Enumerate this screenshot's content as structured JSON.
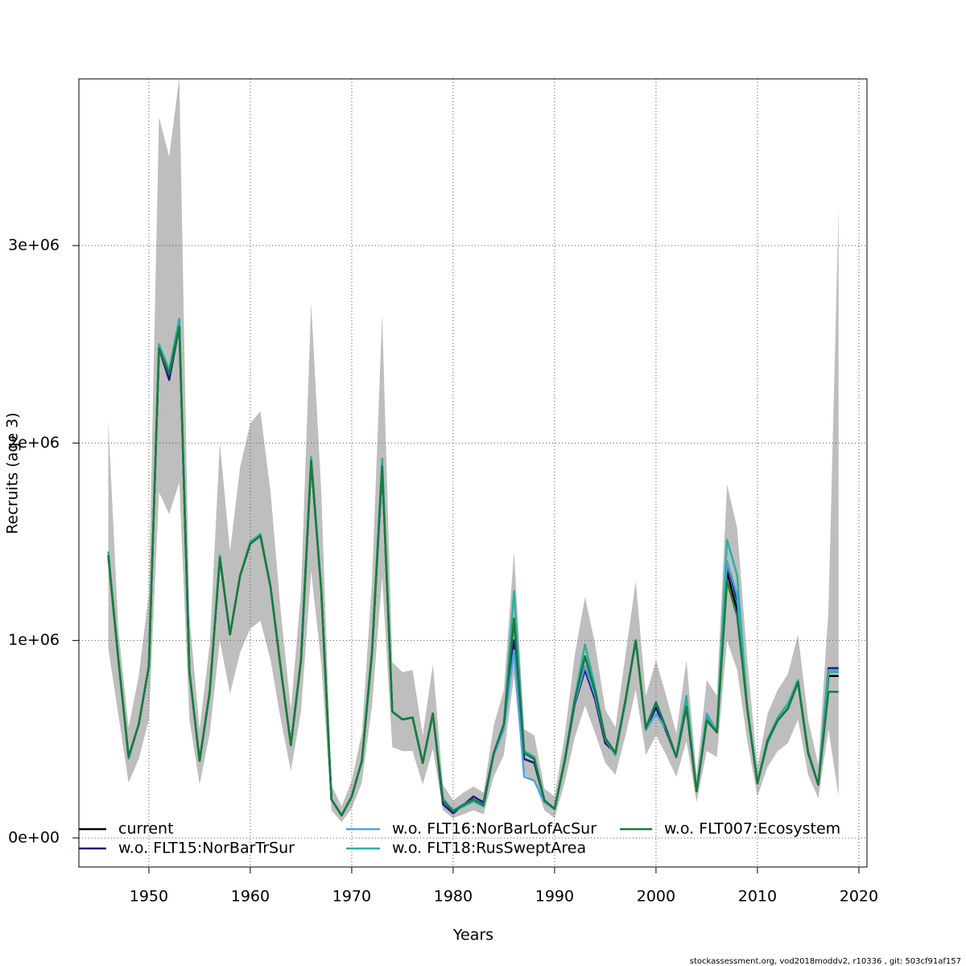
{
  "chart_data": {
    "type": "line",
    "x_label": "Years",
    "y_label": "Recruits (age 3)",
    "footer": "stockassessment.org, vod2018moddv2, r10336 , git: 503cf91af157",
    "x": [
      1946,
      1947,
      1948,
      1949,
      1950,
      1951,
      1952,
      1953,
      1954,
      1955,
      1956,
      1957,
      1958,
      1959,
      1960,
      1961,
      1962,
      1963,
      1964,
      1965,
      1966,
      1967,
      1968,
      1969,
      1970,
      1971,
      1972,
      1973,
      1974,
      1975,
      1976,
      1977,
      1978,
      1979,
      1980,
      1981,
      1982,
      1983,
      1984,
      1985,
      1986,
      1987,
      1988,
      1989,
      1990,
      1991,
      1992,
      1993,
      1994,
      1995,
      1996,
      1997,
      1998,
      1999,
      2000,
      2001,
      2002,
      2003,
      2004,
      2005,
      2006,
      2007,
      2008,
      2009,
      2010,
      2011,
      2012,
      2013,
      2014,
      2015,
      2016,
      2017,
      2018
    ],
    "band": {
      "color": "#bebebe",
      "lower": [
        960000,
        620000,
        280000,
        400000,
        600000,
        1750000,
        1640000,
        1800000,
        600000,
        270000,
        530000,
        1000000,
        730000,
        940000,
        1060000,
        1100000,
        900000,
        600000,
        340000,
        640000,
        1350000,
        880000,
        140000,
        80000,
        150000,
        280000,
        670000,
        1320000,
        460000,
        440000,
        440000,
        270000,
        450000,
        140000,
        100000,
        120000,
        140000,
        120000,
        310000,
        420000,
        820000,
        320000,
        290000,
        140000,
        100000,
        280000,
        510000,
        670000,
        530000,
        380000,
        320000,
        520000,
        750000,
        420000,
        520000,
        420000,
        310000,
        490000,
        180000,
        440000,
        410000,
        1000000,
        850000,
        490000,
        210000,
        360000,
        440000,
        480000,
        600000,
        320000,
        200000,
        550000,
        210000
      ],
      "upper": [
        2110000,
        1050000,
        560000,
        820000,
        1240000,
        3650000,
        3450000,
        3850000,
        1120000,
        550000,
        980000,
        2000000,
        1450000,
        1880000,
        2100000,
        2160000,
        1750000,
        1150000,
        650000,
        1250000,
        2710000,
        1750000,
        270000,
        160000,
        290000,
        530000,
        1300000,
        2650000,
        890000,
        840000,
        850000,
        520000,
        880000,
        270000,
        190000,
        230000,
        260000,
        230000,
        570000,
        750000,
        1450000,
        550000,
        520000,
        250000,
        210000,
        520000,
        930000,
        1220000,
        980000,
        650000,
        560000,
        930000,
        1300000,
        720000,
        900000,
        720000,
        530000,
        900000,
        320000,
        800000,
        720000,
        1790000,
        1570000,
        900000,
        360000,
        630000,
        750000,
        830000,
        1030000,
        600000,
        370000,
        1150000,
        3190000
      ]
    },
    "series": [
      {
        "name": "current",
        "color": "#000000",
        "values": [
          1430000,
          900000,
          410000,
          575000,
          870000,
          2480000,
          2350000,
          2590000,
          840000,
          390000,
          740000,
          1420000,
          1030000,
          1330000,
          1490000,
          1530000,
          1270000,
          860000,
          470000,
          900000,
          1910000,
          1250000,
          195000,
          114000,
          210000,
          390000,
          940000,
          1880000,
          640000,
          600000,
          610000,
          380000,
          630000,
          190000,
          135000,
          167000,
          195000,
          167000,
          430000,
          575000,
          1110000,
          430000,
          400000,
          190000,
          147000,
          390000,
          700000,
          920000,
          740000,
          505000,
          430000,
          700000,
          1000000,
          555000,
          685000,
          555000,
          410000,
          665000,
          236000,
          595000,
          535000,
          1350000,
          1150000,
          655000,
          277000,
          490000,
          595000,
          655000,
          790000,
          430000,
          270000,
          820000,
          820000
        ]
      },
      {
        "name": "w.o. FLT15:NorBarTrSur",
        "color": "#1a1a80",
        "values": [
          1430000,
          900000,
          410000,
          575000,
          870000,
          2480000,
          2320000,
          2590000,
          840000,
          390000,
          740000,
          1420000,
          1030000,
          1330000,
          1490000,
          1530000,
          1270000,
          860000,
          470000,
          900000,
          1910000,
          1250000,
          195000,
          114000,
          210000,
          390000,
          940000,
          1880000,
          640000,
          600000,
          610000,
          380000,
          630000,
          170000,
          125000,
          167000,
          210000,
          180000,
          430000,
          560000,
          1000000,
          400000,
          380000,
          190000,
          147000,
          390000,
          680000,
          850000,
          700000,
          480000,
          430000,
          700000,
          1000000,
          555000,
          660000,
          540000,
          410000,
          665000,
          236000,
          620000,
          535000,
          1400000,
          1200000,
          655000,
          277000,
          500000,
          600000,
          655000,
          790000,
          430000,
          270000,
          860000,
          860000
        ]
      },
      {
        "name": "w.o. FLT16:NorBarLofAcSur",
        "color": "#4aa3df",
        "values": [
          1430000,
          900000,
          410000,
          575000,
          870000,
          2480000,
          2350000,
          2590000,
          840000,
          390000,
          740000,
          1420000,
          1030000,
          1330000,
          1490000,
          1530000,
          1270000,
          860000,
          470000,
          900000,
          1910000,
          1250000,
          195000,
          114000,
          210000,
          390000,
          940000,
          1880000,
          640000,
          600000,
          610000,
          380000,
          630000,
          200000,
          140000,
          170000,
          195000,
          167000,
          420000,
          550000,
          950000,
          310000,
          290000,
          180000,
          147000,
          390000,
          690000,
          870000,
          720000,
          500000,
          420000,
          690000,
          1000000,
          545000,
          630000,
          550000,
          410000,
          700000,
          236000,
          630000,
          540000,
          1400000,
          1230000,
          650000,
          277000,
          480000,
          600000,
          660000,
          790000,
          430000,
          270000,
          850000,
          850000
        ]
      },
      {
        "name": "w.o. FLT18:RusSweptArea",
        "color": "#2ab0a0",
        "values": [
          1450000,
          900000,
          400000,
          575000,
          870000,
          2500000,
          2370000,
          2630000,
          840000,
          390000,
          740000,
          1430000,
          1030000,
          1330000,
          1500000,
          1540000,
          1270000,
          860000,
          470000,
          900000,
          1930000,
          1250000,
          195000,
          114000,
          210000,
          390000,
          950000,
          1920000,
          640000,
          600000,
          610000,
          380000,
          630000,
          190000,
          135000,
          160000,
          185000,
          160000,
          430000,
          580000,
          1250000,
          440000,
          410000,
          190000,
          147000,
          400000,
          710000,
          980000,
          760000,
          505000,
          420000,
          700000,
          1000000,
          560000,
          690000,
          555000,
          410000,
          720000,
          236000,
          620000,
          540000,
          1510000,
          1330000,
          660000,
          277000,
          500000,
          610000,
          680000,
          800000,
          440000,
          270000,
          840000,
          840000
        ]
      },
      {
        "name": "w.o. FLT007:Ecosystem",
        "color": "#1a7a3a",
        "values": [
          1430000,
          900000,
          410000,
          575000,
          870000,
          2480000,
          2350000,
          2590000,
          840000,
          390000,
          740000,
          1420000,
          1030000,
          1330000,
          1490000,
          1530000,
          1270000,
          860000,
          470000,
          900000,
          1910000,
          1250000,
          195000,
          114000,
          210000,
          390000,
          940000,
          1880000,
          640000,
          600000,
          610000,
          380000,
          630000,
          190000,
          135000,
          167000,
          195000,
          167000,
          430000,
          575000,
          1110000,
          430000,
          400000,
          190000,
          147000,
          390000,
          700000,
          920000,
          740000,
          505000,
          430000,
          700000,
          1000000,
          555000,
          685000,
          555000,
          410000,
          665000,
          236000,
          595000,
          535000,
          1300000,
          1125000,
          655000,
          277000,
          490000,
          595000,
          655000,
          790000,
          430000,
          270000,
          740000,
          740000
        ]
      }
    ],
    "xlim": [
      1943.1,
      2020.8
    ],
    "ylim": [
      -147000,
      3844000
    ],
    "xticks": [
      1950,
      1960,
      1970,
      1980,
      1990,
      2000,
      2010,
      2020
    ],
    "yticks": [
      {
        "value": 0,
        "label": "0e+00"
      },
      {
        "value": 1000000,
        "label": "1e+06"
      },
      {
        "value": 2000000,
        "label": "2e+06"
      },
      {
        "value": 3000000,
        "label": "3e+06"
      }
    ],
    "grid": true,
    "legend": "bottom-left"
  }
}
